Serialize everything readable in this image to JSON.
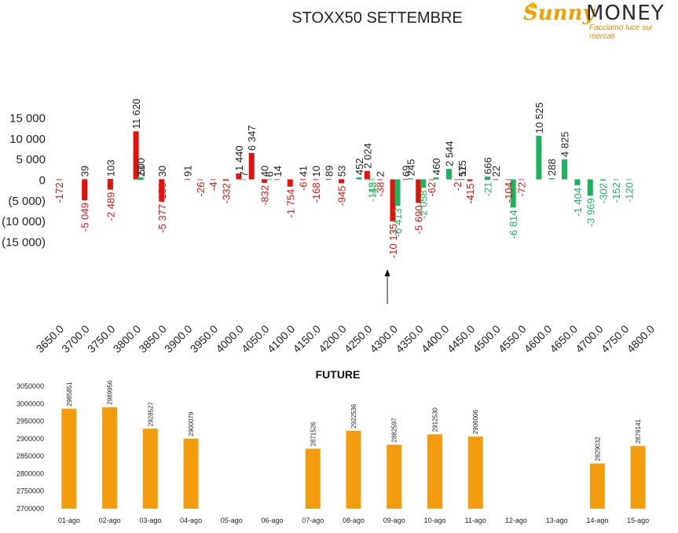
{
  "logo": {
    "word1": "Sunny",
    "word2": "MONEY",
    "tagline": "Facciamo luce sui mercati"
  },
  "colors": {
    "positive": "#1db35c",
    "negative": "#e3110c",
    "call": "#e3110c",
    "future_bar": "#f39c0d",
    "axis_text": "#222222"
  },
  "chart_data": [
    {
      "type": "bar",
      "title": "STOXX50 SETTEMBRE",
      "xlabel": "",
      "ylabel": "",
      "ylim": [
        -15000,
        15000
      ],
      "yticks": [
        15000,
        10000,
        5000,
        0,
        -5000,
        -10000,
        -15000
      ],
      "ytick_labels": [
        "15 000",
        "10 000",
        "5 000",
        "0",
        "(5 000)",
        "(10 000)",
        "(15 000)"
      ],
      "x_tick_labels": [
        "3650.0",
        "3700.0",
        "3750.0",
        "3800.0",
        "3850.0",
        "3900.0",
        "3950.0",
        "4000.0",
        "4050.0",
        "4100.0",
        "4150.0",
        "4200.0",
        "4250.0",
        "4300.0",
        "4350.0",
        "4400.0",
        "4450.0",
        "4500.0",
        "4550.0",
        "4600.0",
        "4650.0",
        "4700.0",
        "4750.0",
        "4800.0"
      ],
      "annotation": "arrow at 4300",
      "series": [
        {
          "color": "red",
          "points": [
            {
              "strike": 3650,
              "value": -172,
              "label": "-172"
            },
            {
              "strike": 3700,
              "value": 39,
              "label": "39"
            },
            {
              "strike": 3700,
              "value": -5049,
              "label": "-5 049"
            },
            {
              "strike": 3750,
              "value": 103,
              "label": "103"
            },
            {
              "strike": 3750,
              "value": -2489,
              "label": "-2 489"
            },
            {
              "strike": 3800,
              "value": 11620,
              "label": "11 620"
            },
            {
              "strike": 3850,
              "value": 30,
              "label": "30"
            },
            {
              "strike": 3850,
              "value": -156,
              "label": "-156"
            },
            {
              "strike": 3850,
              "value": -5377,
              "label": "-5 377"
            },
            {
              "strike": 3900,
              "value": 91,
              "label": "91"
            },
            {
              "strike": 3925,
              "value": -26,
              "label": "-26"
            },
            {
              "strike": 3950,
              "value": -4,
              "label": "-4"
            },
            {
              "strike": 3975,
              "value": -332,
              "label": "-332"
            },
            {
              "strike": 4000,
              "value": 1440,
              "label": "1 440"
            },
            {
              "strike": 4025,
              "value": 6347,
              "label": "6 347"
            },
            {
              "strike": 4050,
              "value": 40,
              "label": "40"
            },
            {
              "strike": 4050,
              "value": -832,
              "label": "-832"
            },
            {
              "strike": 4075,
              "value": 14,
              "label": "14"
            },
            {
              "strike": 4100,
              "value": -1754,
              "label": "-1 754"
            },
            {
              "strike": 4125,
              "value": 41,
              "label": "41"
            },
            {
              "strike": 4125,
              "value": -6,
              "label": "-6"
            },
            {
              "strike": 4150,
              "value": 10,
              "label": "10"
            },
            {
              "strike": 4150,
              "value": -168,
              "label": "-168"
            },
            {
              "strike": 4175,
              "value": 89,
              "label": "89"
            },
            {
              "strike": 4200,
              "value": 53,
              "label": "53"
            },
            {
              "strike": 4200,
              "value": -945,
              "label": "-945"
            },
            {
              "strike": 4250,
              "value": 2024,
              "label": "2 024"
            },
            {
              "strike": 4275,
              "value": 2,
              "label": "2"
            },
            {
              "strike": 4275,
              "value": -38,
              "label": "-38"
            },
            {
              "strike": 4300,
              "value": -10135,
              "label": "-10 135"
            },
            {
              "strike": 4325,
              "value": 69,
              "label": "69"
            },
            {
              "strike": 4350,
              "value": -5690,
              "label": "-5 690"
            },
            {
              "strike": 4375,
              "value": -62,
              "label": "-62"
            },
            {
              "strike": 4425,
              "value": -2,
              "label": "-2"
            },
            {
              "strike": 4450,
              "value": -415,
              "label": "-415"
            },
            {
              "strike": 4500,
              "value": 22,
              "label": "22"
            },
            {
              "strike": 4525,
              "value": -104,
              "label": "-104"
            },
            {
              "strike": 4550,
              "value": -72,
              "label": "-72"
            }
          ]
        },
        {
          "color": "green",
          "points": [
            {
              "strike": 3800,
              "value": 500,
              "label": "500"
            },
            {
              "strike": 3800,
              "value": 23,
              "label": "23"
            },
            {
              "strike": 4000,
              "value": 7,
              "label": "7"
            },
            {
              "strike": 4050,
              "value": 6,
              "label": "6"
            },
            {
              "strike": 4225,
              "value": 452,
              "label": "452"
            },
            {
              "strike": 4250,
              "value": -112,
              "label": "-112"
            },
            {
              "strike": 4250,
              "value": -45,
              "label": "-45"
            },
            {
              "strike": 4300,
              "value": -6413,
              "label": "-6 413"
            },
            {
              "strike": 4325,
              "value": 245,
              "label": "245"
            },
            {
              "strike": 4350,
              "value": -2058,
              "label": "-2 058"
            },
            {
              "strike": 4375,
              "value": 460,
              "label": "460"
            },
            {
              "strike": 4400,
              "value": 2544,
              "label": "2 544"
            },
            {
              "strike": 4425,
              "value": 57,
              "label": "57"
            },
            {
              "strike": 4425,
              "value": 115,
              "label": "115"
            },
            {
              "strike": 4475,
              "value": 666,
              "label": "666"
            },
            {
              "strike": 4475,
              "value": -21,
              "label": "-21"
            },
            {
              "strike": 4525,
              "value": -6814,
              "label": "-6 814"
            },
            {
              "strike": 4575,
              "value": 10525,
              "label": "10 525"
            },
            {
              "strike": 4600,
              "value": 288,
              "label": "288"
            },
            {
              "strike": 4625,
              "value": 4825,
              "label": "4 825"
            },
            {
              "strike": 4650,
              "value": -1404,
              "label": "-1 404"
            },
            {
              "strike": 4675,
              "value": -3969,
              "label": "-3 969"
            },
            {
              "strike": 4700,
              "value": -302,
              "label": "-302"
            },
            {
              "strike": 4725,
              "value": -152,
              "label": "-152"
            },
            {
              "strike": 4750,
              "value": -120,
              "label": "-120"
            }
          ]
        }
      ]
    },
    {
      "type": "bar",
      "title": "FUTURE",
      "xlabel": "",
      "ylabel": "",
      "ylim": [
        2700000,
        3050000
      ],
      "yticks": [
        2700000,
        2750000,
        2800000,
        2850000,
        2900000,
        2950000,
        3000000,
        3050000
      ],
      "categories": [
        "01-ago",
        "02-ago",
        "03-ago",
        "04-ago",
        "05-ago",
        "06-ago",
        "07-ago",
        "08-ago",
        "09-ago",
        "10-ago",
        "11-ago",
        "12-ago",
        "13-ago",
        "14-ago",
        "15-ago"
      ],
      "values": [
        2985851,
        2989956,
        2928527,
        2900079,
        null,
        null,
        2871526,
        2922536,
        2882597,
        2912530,
        2906006,
        null,
        null,
        2829032,
        2879141
      ]
    }
  ]
}
